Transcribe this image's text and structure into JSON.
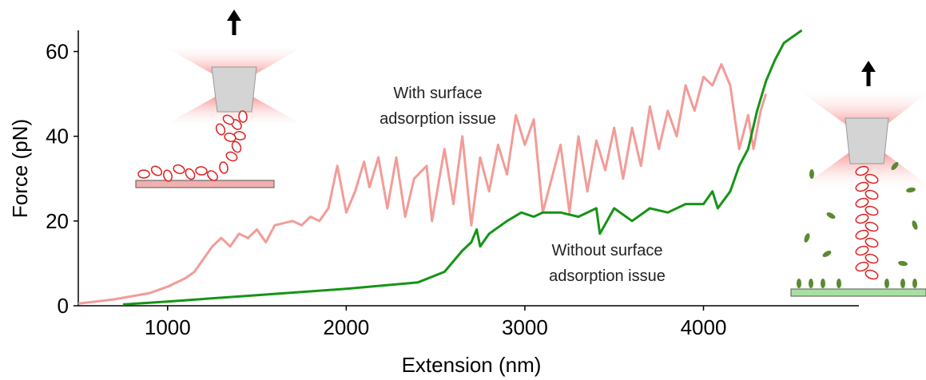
{
  "chart_data": {
    "type": "line",
    "xlabel": "Extension (nm)",
    "ylabel": "Force (pN)",
    "xlim": [
      500,
      4870
    ],
    "xticks": [
      1000,
      2000,
      3000,
      4000
    ],
    "ylim": [
      0,
      65
    ],
    "yticks": [
      0,
      20,
      40,
      60
    ],
    "series": [
      {
        "name": "With surface adsorption issue",
        "color": "#f29c98",
        "x": [
          500,
          700,
          900,
          1000,
          1100,
          1150,
          1200,
          1250,
          1300,
          1350,
          1400,
          1450,
          1500,
          1550,
          1600,
          1700,
          1750,
          1800,
          1850,
          1900,
          1950,
          2000,
          2050,
          2100,
          2130,
          2180,
          2230,
          2280,
          2330,
          2380,
          2450,
          2480,
          2550,
          2600,
          2650,
          2700,
          2750,
          2800,
          2850,
          2900,
          2950,
          3000,
          3050,
          3100,
          3150,
          3200,
          3250,
          3300,
          3350,
          3400,
          3450,
          3500,
          3550,
          3600,
          3650,
          3700,
          3750,
          3800,
          3850,
          3900,
          3950,
          4000,
          4050,
          4100,
          4150,
          4200,
          4250,
          4280,
          4320,
          4350
        ],
        "values": [
          0.5,
          1.5,
          3,
          4.5,
          6.5,
          8,
          11,
          14,
          16,
          14,
          17,
          16,
          18,
          15,
          19,
          20,
          19,
          21,
          20,
          23,
          33,
          22,
          27,
          34,
          28,
          35,
          23,
          35,
          21,
          30,
          33,
          20,
          37,
          24,
          40,
          19,
          35,
          27,
          38,
          31,
          45,
          38,
          44,
          22,
          30,
          38,
          22,
          40,
          27,
          39,
          32,
          42,
          30,
          42,
          33,
          47,
          37,
          46,
          40,
          52,
          46,
          54,
          52,
          57,
          52,
          37,
          45,
          37,
          46,
          50
        ]
      },
      {
        "name": "Without surface adsorption issue",
        "color": "#169416",
        "x": [
          750,
          1000,
          1500,
          2000,
          2400,
          2550,
          2650,
          2700,
          2730,
          2750,
          2800,
          2900,
          2980,
          3050,
          3100,
          3200,
          3300,
          3400,
          3420,
          3500,
          3600,
          3700,
          3800,
          3900,
          4000,
          4050,
          4080,
          4150,
          4200,
          4250,
          4300,
          4350,
          4400,
          4450,
          4550
        ],
        "values": [
          0.3,
          1,
          2.5,
          4,
          5.5,
          8,
          13,
          15,
          18,
          14,
          17,
          20,
          22,
          21,
          22,
          22,
          21,
          23,
          17,
          23,
          20,
          23,
          22,
          24,
          24,
          27,
          23,
          27,
          33,
          37,
          46,
          53,
          58,
          62,
          65
        ]
      }
    ]
  }
}
